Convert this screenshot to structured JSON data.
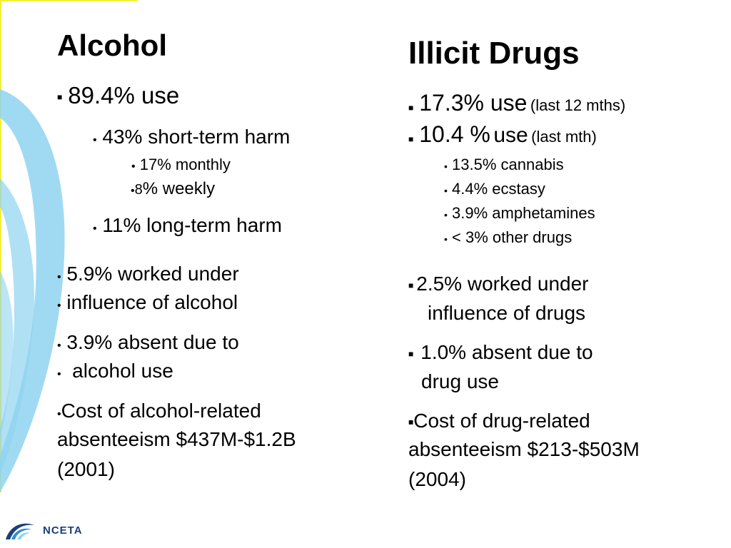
{
  "left": {
    "heading": "Alcohol",
    "use": "89.4% use",
    "short_term": "43% short-term harm",
    "monthly": "17% monthly",
    "weekly_prefix": "8",
    "weekly": "% weekly",
    "long_term": "11% long-term harm",
    "worked_1": "5.9% worked under",
    "worked_2": "influence of alcohol",
    "absent_1": "3.9% absent due to",
    "absent_2": " alcohol use",
    "cost_1": "Cost of alcohol-related",
    "cost_2": "absenteeism $437M-$1.2B",
    "cost_3": "(2001)"
  },
  "right": {
    "heading": "Illicit Drugs",
    "use_12_main": "17.3% use",
    "use_12_note": "(last 12 mths)",
    "use_mth_value": "10.4 %",
    "use_mth_word": "use",
    "use_mth_note": "(last mth)",
    "cannabis": "13.5% cannabis",
    "ecstasy": "4.4% ecstasy",
    "amphetamines": "3.9% amphetamines",
    "other": "< 3% other drugs",
    "worked_1": "2.5% worked under",
    "worked_2": "influence of drugs",
    "absent_1": "1.0% absent due to",
    "absent_2": "drug use",
    "cost_1": "Cost of drug-related",
    "cost_2": "absenteeism $213-$503M",
    "cost_3": "(2004)"
  },
  "logo": {
    "text": "NCETA"
  },
  "colors": {
    "decor_blue": "#8fd3f0",
    "decor_yellow": "#f5ef3c",
    "logo_blue": "#1b3f7a"
  }
}
